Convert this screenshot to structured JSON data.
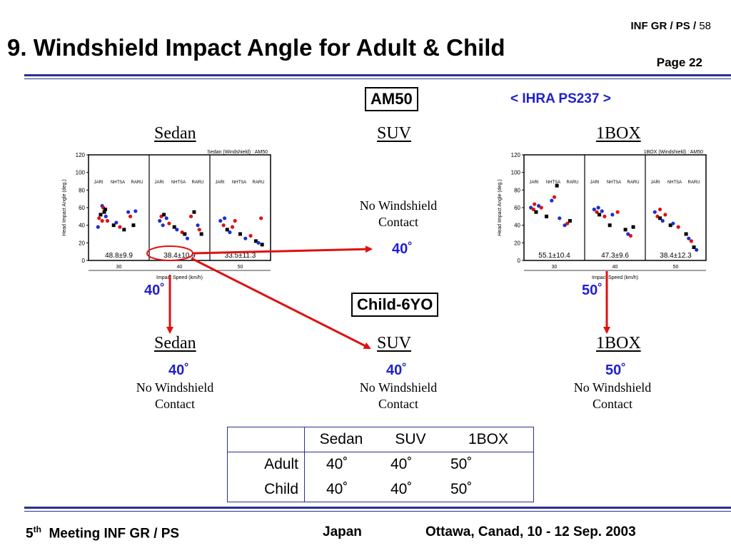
{
  "header": {
    "ref": "INF GR / PS /",
    "ref_num": "58",
    "title": "9. Windshield Impact Angle for Adult & Child",
    "page": "Page 22"
  },
  "ihra": "< IHRA PS237 >",
  "adult_label": "AM50",
  "child_label": "Child-6YO",
  "vehicles": {
    "sedan": "Sedan",
    "suv": "SUV",
    "onebox": "1BOX"
  },
  "no_windshield": {
    "line1": "No Windshield",
    "line2": "Contact"
  },
  "angles": {
    "adult_sedan": "40˚",
    "adult_suv": "40˚",
    "adult_1box": "50˚",
    "child_sedan": "40˚",
    "child_suv": "40˚",
    "child_1box": "50˚"
  },
  "chart_data": [
    {
      "type": "scatter",
      "vehicle": "Sedan",
      "legend": "Sedan (Windshield) : AM50",
      "ylabel": "Head Impact Angle (deg.)",
      "xlabel": "Impact Speed (km/h)",
      "ylim": [
        0,
        120
      ],
      "yticks": [
        0,
        20,
        40,
        60,
        80,
        100,
        120
      ],
      "groups": [
        {
          "speed": "30",
          "labels": [
            "JARI",
            "NHTSA",
            "RARU"
          ],
          "summary": "48.8±9.9",
          "points": [
            [
              0.1,
              38
            ],
            [
              0.12,
              48
            ],
            [
              0.15,
              52
            ],
            [
              0.18,
              62
            ],
            [
              0.2,
              60
            ],
            [
              0.22,
              55
            ],
            [
              0.25,
              50
            ],
            [
              0.28,
              45
            ],
            [
              0.4,
              40
            ],
            [
              0.45,
              43
            ],
            [
              0.52,
              38
            ],
            [
              0.6,
              35
            ],
            [
              0.68,
              55
            ],
            [
              0.72,
              50
            ],
            [
              0.78,
              40
            ],
            [
              0.82,
              56
            ],
            [
              0.18,
              45
            ],
            [
              0.24,
              58
            ]
          ]
        },
        {
          "speed": "40",
          "labels": [
            "JARI",
            "NHTSA",
            "RARU"
          ],
          "summary": "38.4±10.9",
          "points": [
            [
              0.12,
              45
            ],
            [
              0.15,
              50
            ],
            [
              0.2,
              52
            ],
            [
              0.25,
              48
            ],
            [
              0.3,
              42
            ],
            [
              0.4,
              38
            ],
            [
              0.45,
              35
            ],
            [
              0.55,
              32
            ],
            [
              0.6,
              30
            ],
            [
              0.65,
              25
            ],
            [
              0.72,
              50
            ],
            [
              0.78,
              55
            ],
            [
              0.85,
              40
            ],
            [
              0.88,
              35
            ],
            [
              0.92,
              30
            ],
            [
              0.18,
              40
            ]
          ]
        },
        {
          "speed": "50",
          "labels": [
            "JARI",
            "NHTSA",
            "RARU"
          ],
          "summary": "33.5±11.3",
          "points": [
            [
              0.12,
              45
            ],
            [
              0.18,
              40
            ],
            [
              0.25,
              35
            ],
            [
              0.3,
              32
            ],
            [
              0.4,
              45
            ],
            [
              0.5,
              30
            ],
            [
              0.6,
              25
            ],
            [
              0.7,
              28
            ],
            [
              0.8,
              22
            ],
            [
              0.85,
              20
            ],
            [
              0.9,
              48
            ],
            [
              0.92,
              18
            ],
            [
              0.2,
              48
            ],
            [
              0.35,
              38
            ]
          ]
        }
      ]
    },
    {
      "type": "scatter",
      "vehicle": "1BOX",
      "legend": "1BOX (Windshield) : AM50",
      "ylabel": "Head Impact Angle (deg.)",
      "xlabel": "Impact Speed (km/h)",
      "ylim": [
        0,
        120
      ],
      "yticks": [
        0,
        20,
        40,
        60,
        80,
        100,
        120
      ],
      "groups": [
        {
          "speed": "30",
          "labels": [
            "JARI",
            "NHTSA",
            "RARU"
          ],
          "summary": "55.1±10.4",
          "points": [
            [
              0.05,
              60
            ],
            [
              0.1,
              58
            ],
            [
              0.15,
              55
            ],
            [
              0.2,
              62
            ],
            [
              0.25,
              60
            ],
            [
              0.35,
              50
            ],
            [
              0.45,
              68
            ],
            [
              0.5,
              72
            ],
            [
              0.55,
              85
            ],
            [
              0.7,
              40
            ],
            [
              0.75,
              42
            ],
            [
              0.8,
              45
            ],
            [
              0.6,
              48
            ],
            [
              0.12,
              64
            ]
          ]
        },
        {
          "speed": "40",
          "labels": [
            "JARI",
            "NHTSA",
            "RARU"
          ],
          "summary": "47.3±9.6",
          "points": [
            [
              0.1,
              58
            ],
            [
              0.15,
              55
            ],
            [
              0.2,
              52
            ],
            [
              0.25,
              56
            ],
            [
              0.3,
              50
            ],
            [
              0.4,
              40
            ],
            [
              0.45,
              52
            ],
            [
              0.55,
              55
            ],
            [
              0.7,
              35
            ],
            [
              0.75,
              30
            ],
            [
              0.8,
              28
            ],
            [
              0.85,
              38
            ],
            [
              0.18,
              60
            ]
          ]
        },
        {
          "speed": "50",
          "labels": [
            "JARI",
            "NHTSA",
            "RARU"
          ],
          "summary": "38.4±12.3",
          "points": [
            [
              0.1,
              55
            ],
            [
              0.15,
              50
            ],
            [
              0.2,
              48
            ],
            [
              0.25,
              45
            ],
            [
              0.3,
              52
            ],
            [
              0.4,
              40
            ],
            [
              0.45,
              42
            ],
            [
              0.55,
              38
            ],
            [
              0.7,
              30
            ],
            [
              0.75,
              25
            ],
            [
              0.8,
              22
            ],
            [
              0.85,
              15
            ],
            [
              0.9,
              12
            ],
            [
              0.2,
              58
            ]
          ]
        }
      ]
    }
  ],
  "table": {
    "headers": [
      "",
      "Sedan",
      "SUV",
      "1BOX"
    ],
    "rows": [
      {
        "label": "Adult",
        "values": [
          "40˚",
          "40˚",
          "50˚"
        ]
      },
      {
        "label": "Child",
        "values": [
          "40˚",
          "40˚",
          "50˚"
        ]
      }
    ]
  },
  "footer": {
    "meeting_num": "5",
    "meeting_sup": "th",
    "meeting": "Meeting INF GR / PS",
    "country": "Japan",
    "place": "Ottawa, Canad, 10 - 12 Sep. 2003"
  },
  "colors": {
    "accent": "#2b2f8f",
    "arrow": "#e01010",
    "degree": "#1f1fcf"
  }
}
